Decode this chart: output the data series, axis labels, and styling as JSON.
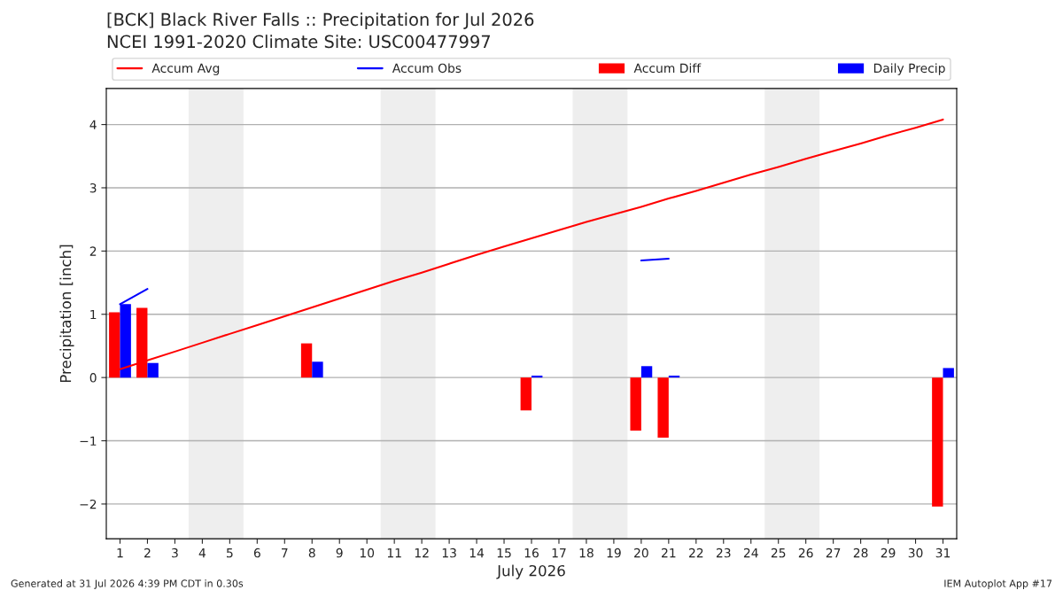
{
  "chart_data": {
    "type": "bar",
    "title": "[BCK] Black River Falls :: Precipitation for Jul 2026",
    "subtitle": "NCEI 1991-2020 Climate Site: USC00477997",
    "xlabel": "July 2026",
    "ylabel": "Precipitation [inch]",
    "x": [
      1,
      2,
      3,
      4,
      5,
      6,
      7,
      8,
      9,
      10,
      11,
      12,
      13,
      14,
      15,
      16,
      17,
      18,
      19,
      20,
      21,
      22,
      23,
      24,
      25,
      26,
      27,
      28,
      29,
      30,
      31
    ],
    "xlim": [
      0.5,
      31.5
    ],
    "xticks": [
      1,
      2,
      3,
      4,
      5,
      6,
      7,
      8,
      9,
      10,
      11,
      12,
      13,
      14,
      15,
      16,
      17,
      18,
      19,
      20,
      21,
      22,
      23,
      24,
      25,
      26,
      27,
      28,
      29,
      30,
      31
    ],
    "ylim": [
      -2.55,
      4.57
    ],
    "yticks": [
      {
        "value": -2,
        "label": "−2"
      },
      {
        "value": -1,
        "label": "−1"
      },
      0,
      1,
      2,
      3,
      4
    ],
    "series": [
      {
        "name": "Accum Avg",
        "type": "line",
        "color": "#ff0000",
        "values": [
          0.13,
          0.27,
          0.41,
          0.55,
          0.69,
          0.83,
          0.97,
          1.11,
          1.25,
          1.39,
          1.53,
          1.66,
          1.8,
          1.94,
          2.07,
          2.2,
          2.33,
          2.46,
          2.58,
          2.7,
          2.83,
          2.95,
          3.08,
          3.21,
          3.33,
          3.46,
          3.58,
          3.7,
          3.83,
          3.95,
          4.08
        ]
      },
      {
        "name": "Accum Obs",
        "type": "line",
        "color": "#0000ff",
        "values": [
          1.16,
          1.4,
          null,
          null,
          null,
          null,
          null,
          null,
          null,
          null,
          null,
          null,
          null,
          null,
          null,
          null,
          null,
          null,
          null,
          1.85,
          1.88,
          null,
          null,
          null,
          null,
          null,
          null,
          null,
          null,
          null,
          null
        ]
      },
      {
        "name": "Accum Diff",
        "color": "#ff0000",
        "values": [
          1.03,
          1.1,
          null,
          null,
          null,
          null,
          null,
          0.54,
          null,
          null,
          null,
          null,
          null,
          null,
          null,
          -0.52,
          null,
          null,
          null,
          -0.84,
          -0.95,
          null,
          null,
          null,
          null,
          null,
          null,
          null,
          null,
          null,
          -2.04
        ]
      },
      {
        "name": "Daily Precip",
        "color": "#0000ff",
        "values": [
          1.16,
          0.23,
          null,
          null,
          null,
          null,
          null,
          0.25,
          null,
          null,
          null,
          null,
          null,
          null,
          null,
          0.03,
          null,
          null,
          null,
          0.18,
          0.03,
          null,
          null,
          null,
          null,
          null,
          null,
          null,
          null,
          null,
          0.15
        ]
      }
    ],
    "bands": [
      {
        "axis": "x",
        "from": 3.5,
        "to": 5.5,
        "color": "#eeeeee"
      },
      {
        "axis": "x",
        "from": 10.5,
        "to": 12.5,
        "color": "#eeeeee"
      },
      {
        "axis": "x",
        "from": 17.5,
        "to": 19.5,
        "color": "#eeeeee"
      },
      {
        "axis": "x",
        "from": 24.5,
        "to": 26.5,
        "color": "#eeeeee"
      }
    ],
    "annotations": [
      "Generated at 31 Jul 2026 4:39 PM CDT in 0.30s",
      "IEM Autoplot App #17"
    ],
    "grid": "y",
    "legend": "top"
  }
}
